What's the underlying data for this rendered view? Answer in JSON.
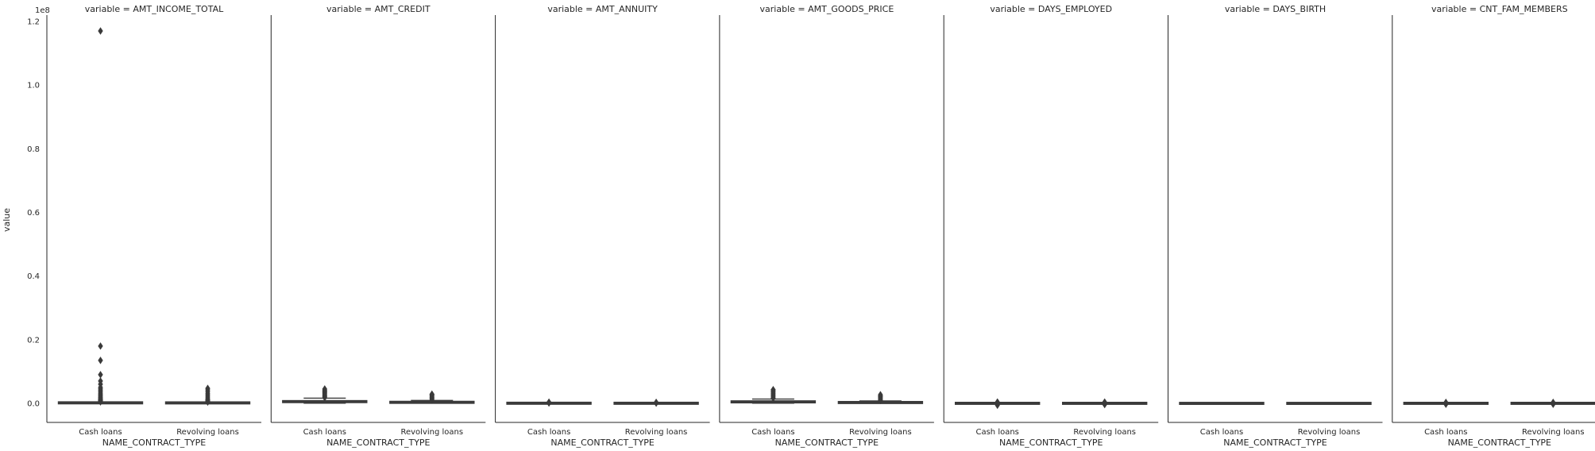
{
  "chart_data": {
    "type": "boxplot",
    "facet_variable": "variable",
    "ylabel": "value",
    "xlabel": "NAME_CONTRACT_TYPE",
    "y_offset_label": "1e8",
    "ylim": [
      -0.06,
      1.22
    ],
    "ytick_labels": [
      "0.0",
      "0.2",
      "0.4",
      "0.6",
      "0.8",
      "1.0",
      "1.2"
    ],
    "yticks": [
      0.0,
      0.2,
      0.4,
      0.6,
      0.8,
      1.0,
      1.2
    ],
    "categories": [
      "Cash loans",
      "Revolving loans"
    ],
    "grid": false,
    "box_color": "#3a3a3a",
    "panels": [
      {
        "title": "variable = AMT_INCOME_TOTAL",
        "boxes": [
          {
            "category": "Cash loans",
            "q1": 0.0011,
            "median": 0.0015,
            "q3": 0.002,
            "whisker_low": 0.0003,
            "whisker_high": 0.0034,
            "outliers": [
              0.0045,
              0.006,
              0.008,
              0.01,
              0.012,
              0.015,
              0.018,
              0.022,
              0.026,
              0.03,
              0.035,
              0.04,
              0.045,
              0.05,
              0.06,
              0.07,
              0.09,
              0.135,
              0.18,
              1.17
            ]
          },
          {
            "category": "Revolving loans",
            "q1": 0.0009,
            "median": 0.0013,
            "q3": 0.0018,
            "whisker_low": 0.0003,
            "whisker_high": 0.0032,
            "outliers": [
              0.004,
              0.006,
              0.008,
              0.011,
              0.015,
              0.02,
              0.025,
              0.03,
              0.036,
              0.042,
              0.047
            ]
          }
        ]
      },
      {
        "title": "variable = AMT_CREDIT",
        "boxes": [
          {
            "category": "Cash loans",
            "q1": 0.0027,
            "median": 0.0051,
            "q3": 0.0081,
            "whisker_low": 0.0005,
            "whisker_high": 0.0162,
            "outliers": [
              0.018,
              0.021,
              0.024,
              0.027,
              0.03,
              0.033,
              0.036,
              0.039,
              0.042,
              0.045
            ]
          },
          {
            "category": "Revolving loans",
            "q1": 0.0018,
            "median": 0.0027,
            "q3": 0.0045,
            "whisker_low": 0.0003,
            "whisker_high": 0.009,
            "outliers": [
              0.01,
              0.013,
              0.016,
              0.019,
              0.022,
              0.025,
              0.027,
              0.029
            ]
          }
        ]
      },
      {
        "title": "variable = AMT_ANNUITY",
        "boxes": [
          {
            "category": "Cash loans",
            "q1": 0.00017,
            "median": 0.00025,
            "q3": 0.00035,
            "whisker_low": 2e-05,
            "whisker_high": 0.0007,
            "outliers": [
              0.001,
              0.0015,
              0.002,
              0.0025,
              0.003,
              0.0035
            ]
          },
          {
            "category": "Revolving loans",
            "q1": 0.0001,
            "median": 0.00015,
            "q3": 0.00022,
            "whisker_low": 2e-05,
            "whisker_high": 0.0004,
            "outliers": [
              0.0008,
              0.0012,
              0.0018,
              0.0024,
              0.003
            ]
          }
        ]
      },
      {
        "title": "variable = AMT_GOODS_PRICE",
        "boxes": [
          {
            "category": "Cash loans",
            "q1": 0.0024,
            "median": 0.0045,
            "q3": 0.0068,
            "whisker_low": 0.0004,
            "whisker_high": 0.0135,
            "outliers": [
              0.016,
              0.02,
              0.024,
              0.028,
              0.032,
              0.036,
              0.04,
              0.043
            ]
          },
          {
            "category": "Revolving loans",
            "q1": 0.0015,
            "median": 0.0023,
            "q3": 0.0036,
            "whisker_low": 0.0003,
            "whisker_high": 0.0075,
            "outliers": [
              0.009,
              0.012,
              0.015,
              0.018,
              0.021,
              0.024,
              0.027
            ]
          }
        ]
      },
      {
        "title": "variable = DAYS_EMPLOYED",
        "boxes": [
          {
            "category": "Cash loans",
            "q1": -3e-05,
            "median": -1.5e-05,
            "q3": 0.0,
            "whisker_low": -0.0001,
            "whisker_high": 5e-05,
            "outliers": [
              -0.006,
              -0.003,
              0.0036,
              0.0036,
              0.0037
            ]
          },
          {
            "category": "Revolving loans",
            "q1": -3e-05,
            "median": -1.5e-05,
            "q3": 0.0,
            "whisker_low": -0.0001,
            "whisker_high": 5e-05,
            "outliers": [
              -0.004,
              -0.002,
              0.0036,
              0.0037
            ]
          }
        ]
      },
      {
        "title": "variable = DAYS_BIRTH",
        "boxes": [
          {
            "category": "Cash loans",
            "q1": -0.0002,
            "median": -0.00016,
            "q3": -0.00012,
            "whisker_low": -0.00025,
            "whisker_high": -8e-05,
            "outliers": []
          },
          {
            "category": "Revolving loans",
            "q1": -0.0002,
            "median": -0.00016,
            "q3": -0.00012,
            "whisker_low": -0.00025,
            "whisker_high": -8e-05,
            "outliers": []
          }
        ]
      },
      {
        "title": "variable = CNT_FAM_MEMBERS",
        "boxes": [
          {
            "category": "Cash loans",
            "q1": 0.0,
            "median": 0.0,
            "q3": 0.0,
            "whisker_low": 0.0,
            "whisker_high": 0.0,
            "outliers": [
              -0.003,
              -0.0015,
              0.0015,
              0.003
            ]
          },
          {
            "category": "Revolving loans",
            "q1": 0.0,
            "median": 0.0,
            "q3": 0.0,
            "whisker_low": 0.0,
            "whisker_high": 0.0,
            "outliers": [
              -0.003,
              -0.0015,
              0.0015,
              0.003
            ]
          }
        ]
      }
    ]
  }
}
